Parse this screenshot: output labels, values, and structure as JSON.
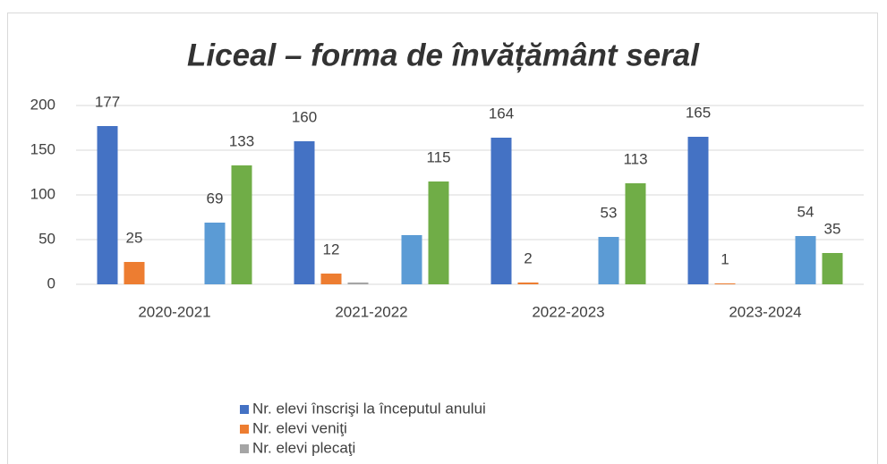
{
  "chart_data": {
    "type": "bar",
    "title": "Liceal – forma de învățământ seral",
    "categories": [
      "2020-2021",
      "2021-2022",
      "2022-2023",
      "2023-2024"
    ],
    "series": [
      {
        "name": "Nr. elevi înscrişi la începutul anului",
        "color": "#4472c4",
        "values": [
          177,
          160,
          164,
          165
        ],
        "value_labels": [
          "177",
          "160",
          "164",
          "165"
        ]
      },
      {
        "name": "Nr. elevi veniţi",
        "color": "#ed7d31",
        "values": [
          25,
          12,
          2,
          1
        ],
        "value_labels": [
          "25",
          "12",
          "2",
          "1"
        ]
      },
      {
        "name": "Nr. elevi plecaţi",
        "color": "#a5a5a5",
        "values": [
          0,
          2,
          0,
          0
        ],
        "value_labels": [
          null,
          null,
          null,
          null
        ]
      },
      {
        "color": "#5b9bd5",
        "values": [
          69,
          55,
          53,
          54
        ],
        "value_labels": [
          "69",
          null,
          "53",
          "54"
        ]
      },
      {
        "color": "#70ad47",
        "values": [
          133,
          115,
          113,
          35
        ],
        "value_labels": [
          "133",
          "115",
          "113",
          "35"
        ]
      }
    ],
    "ylim": [
      0,
      200
    ],
    "yticks": [
      0,
      50,
      100,
      150,
      200
    ],
    "grid": true,
    "legend": "bottom"
  }
}
